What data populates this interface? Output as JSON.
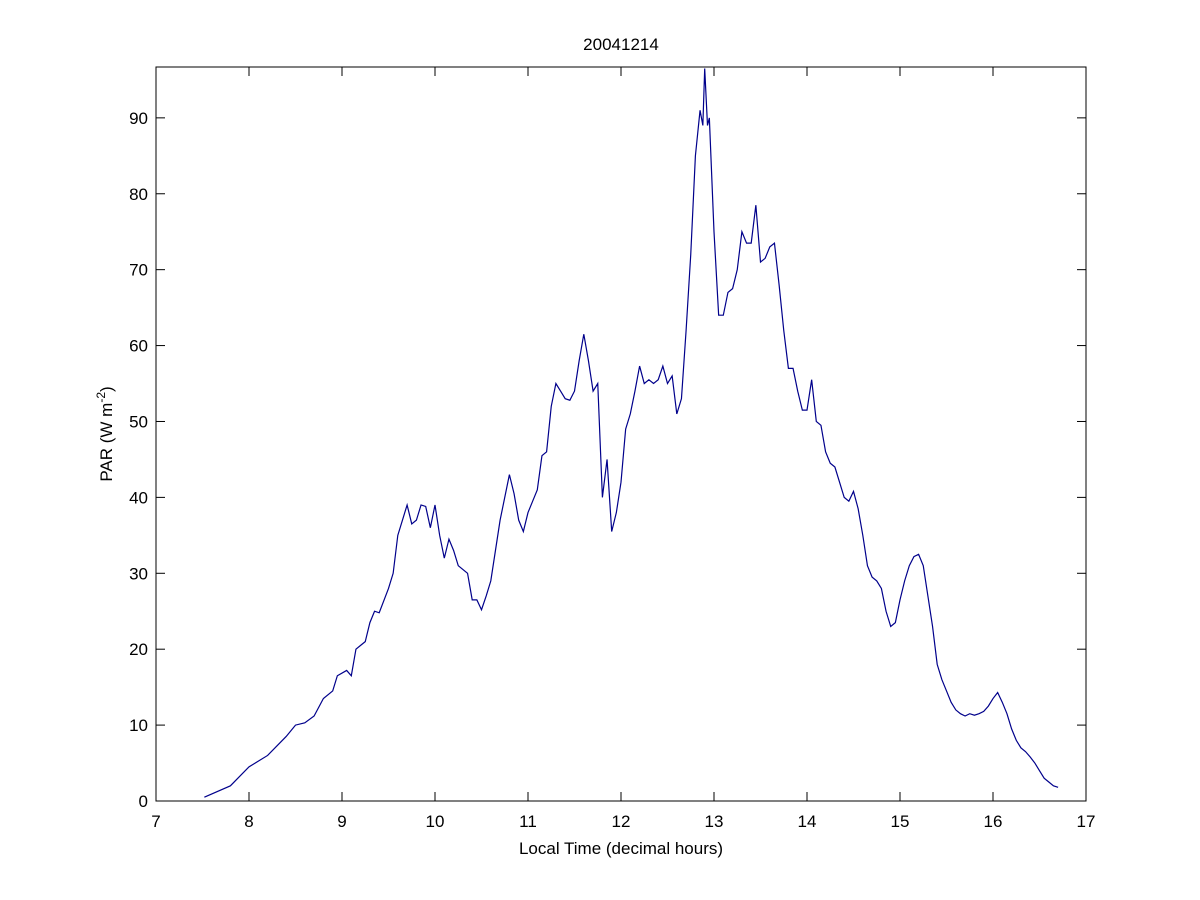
{
  "chart_data": {
    "type": "line",
    "title": "20041214",
    "xlabel": "Local Time (decimal hours)",
    "ylabel_parts": [
      "PAR (W m",
      "-2",
      ")"
    ],
    "xlim": [
      7,
      17
    ],
    "ylim": [
      0,
      96.7
    ],
    "xticks": [
      7,
      8,
      9,
      10,
      11,
      12,
      13,
      14,
      15,
      16,
      17
    ],
    "yticks": [
      0,
      10,
      20,
      30,
      40,
      50,
      60,
      70,
      80,
      90
    ],
    "grid": false,
    "box": true,
    "series": [
      {
        "color": "#00008b",
        "x": [
          7.52,
          7.8,
          8.0,
          8.2,
          8.4,
          8.5,
          8.6,
          8.7,
          8.8,
          8.9,
          8.95,
          9.05,
          9.1,
          9.15,
          9.2,
          9.25,
          9.3,
          9.35,
          9.4,
          9.5,
          9.55,
          9.6,
          9.65,
          9.7,
          9.75,
          9.8,
          9.85,
          9.9,
          9.95,
          10.0,
          10.05,
          10.1,
          10.15,
          10.2,
          10.25,
          10.35,
          10.4,
          10.45,
          10.5,
          10.55,
          10.6,
          10.65,
          10.7,
          10.75,
          10.8,
          10.85,
          10.9,
          10.95,
          11.0,
          11.05,
          11.1,
          11.15,
          11.2,
          11.25,
          11.3,
          11.35,
          11.4,
          11.45,
          11.5,
          11.55,
          11.6,
          11.65,
          11.7,
          11.75,
          11.8,
          11.85,
          11.9,
          11.95,
          12.0,
          12.05,
          12.1,
          12.15,
          12.2,
          12.25,
          12.3,
          12.35,
          12.4,
          12.45,
          12.5,
          12.55,
          12.6,
          12.65,
          12.7,
          12.75,
          12.8,
          12.85,
          12.88,
          12.9,
          12.93,
          12.95,
          13.0,
          13.05,
          13.1,
          13.15,
          13.2,
          13.25,
          13.3,
          13.35,
          13.4,
          13.45,
          13.5,
          13.55,
          13.6,
          13.65,
          13.7,
          13.75,
          13.8,
          13.85,
          13.9,
          13.95,
          14.0,
          14.05,
          14.1,
          14.15,
          14.2,
          14.25,
          14.3,
          14.35,
          14.4,
          14.45,
          14.5,
          14.55,
          14.6,
          14.65,
          14.7,
          14.75,
          14.8,
          14.85,
          14.9,
          14.95,
          15.0,
          15.05,
          15.1,
          15.15,
          15.2,
          15.25,
          15.3,
          15.35,
          15.4,
          15.45,
          15.5,
          15.55,
          15.6,
          15.65,
          15.7,
          15.75,
          15.8,
          15.85,
          15.9,
          15.95,
          16.0,
          16.05,
          16.1,
          16.15,
          16.2,
          16.25,
          16.3,
          16.35,
          16.4,
          16.45,
          16.5,
          16.55,
          16.6,
          16.65,
          16.7
        ],
        "values": [
          0.5,
          2,
          4.5,
          6,
          8.5,
          10,
          10.3,
          11.2,
          13.5,
          14.5,
          16.5,
          17.2,
          16.5,
          20,
          20.5,
          21,
          23.5,
          25,
          24.8,
          28,
          30,
          35,
          37,
          39,
          36.5,
          37,
          39,
          38.8,
          36,
          39,
          35,
          32,
          34.5,
          33,
          31,
          30,
          26.5,
          26.5,
          25.2,
          27,
          29,
          33,
          37,
          40,
          43,
          40.5,
          37,
          35.5,
          38,
          39.5,
          41,
          45.5,
          46,
          52,
          55,
          54,
          53,
          52.8,
          54,
          58,
          61.5,
          58,
          54,
          55,
          40,
          45,
          35.5,
          38,
          42,
          49,
          51,
          54,
          57.3,
          55,
          55.5,
          55,
          55.5,
          57.3,
          55,
          56,
          51,
          53,
          62,
          72,
          85,
          91,
          89,
          96.5,
          89,
          90,
          75,
          64,
          64,
          67,
          67.5,
          70,
          75,
          73.5,
          73.5,
          78.5,
          71,
          71.5,
          73,
          73.5,
          68,
          62,
          57,
          57,
          54,
          51.5,
          51.5,
          55.5,
          50,
          49.5,
          46,
          44.5,
          44,
          42,
          40,
          39.5,
          40.8,
          38.5,
          35,
          31,
          29.5,
          29,
          28,
          25,
          23,
          23.5,
          26.5,
          29,
          31,
          32.2,
          32.5,
          31,
          27,
          23,
          18,
          16,
          14.5,
          13,
          12,
          11.5,
          11.2,
          11.5,
          11.3,
          11.5,
          11.8,
          12.5,
          13.5,
          14.3,
          13,
          11.5,
          9.5,
          8,
          7,
          6.5,
          5.8,
          5,
          4,
          3,
          2.5,
          2,
          1.8
        ]
      }
    ]
  }
}
